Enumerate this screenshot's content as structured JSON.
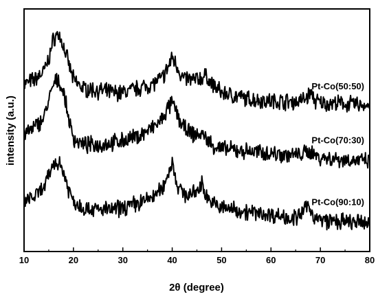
{
  "chart_data": {
    "type": "line",
    "xlabel": "2θ (degree)",
    "ylabel": "intensity (a.u.)",
    "xlim": [
      10,
      80
    ],
    "x_ticks": [
      "10",
      "20",
      "30",
      "40",
      "50",
      "60",
      "70",
      "80"
    ],
    "grid": false,
    "series": [
      {
        "name": "Pt-Co(50:50)",
        "x": [
          10,
          12,
          14,
          15,
          16,
          17,
          18,
          19,
          20,
          22,
          25,
          28,
          30,
          33,
          36,
          38,
          39,
          40,
          41,
          42,
          44,
          46,
          47,
          48,
          50,
          55,
          60,
          65,
          67,
          68,
          69,
          70,
          75,
          80
        ],
        "y": [
          3.4,
          3.5,
          3.7,
          4.0,
          4.5,
          4.6,
          4.3,
          3.9,
          3.5,
          3.3,
          3.25,
          3.2,
          3.2,
          3.3,
          3.4,
          3.55,
          3.75,
          4.05,
          3.85,
          3.55,
          3.5,
          3.55,
          3.6,
          3.4,
          3.2,
          3.05,
          3.0,
          2.98,
          3.05,
          3.2,
          3.0,
          2.95,
          2.93,
          2.9
        ]
      },
      {
        "name": "Pt-Co(70:30)",
        "x": [
          10,
          12,
          14,
          15,
          16,
          17,
          18,
          19,
          20,
          22,
          25,
          28,
          30,
          33,
          36,
          38,
          39,
          40,
          41,
          42,
          44,
          46,
          47,
          48,
          50,
          55,
          60,
          65,
          67,
          68,
          69,
          70,
          75,
          80
        ],
        "y": [
          2.2,
          2.35,
          2.6,
          3.0,
          3.4,
          3.5,
          3.2,
          2.6,
          2.1,
          1.95,
          1.95,
          2.0,
          2.05,
          2.15,
          2.35,
          2.55,
          2.8,
          2.95,
          2.7,
          2.4,
          2.2,
          2.2,
          2.1,
          1.95,
          1.85,
          1.8,
          1.75,
          1.7,
          1.75,
          1.8,
          1.7,
          1.65,
          1.6,
          1.55
        ]
      },
      {
        "name": "Pt-Co(90:10)",
        "x": [
          10,
          12,
          14,
          15,
          16,
          17,
          18,
          19,
          20,
          22,
          25,
          28,
          30,
          33,
          36,
          38,
          39,
          40,
          41,
          42,
          44,
          45,
          46,
          47,
          48,
          50,
          53,
          55,
          60,
          65,
          66,
          67,
          68,
          69,
          70,
          75,
          80
        ],
        "y": [
          0.6,
          0.7,
          0.9,
          1.2,
          1.5,
          1.55,
          1.3,
          0.9,
          0.6,
          0.45,
          0.4,
          0.4,
          0.45,
          0.55,
          0.7,
          0.9,
          1.2,
          1.55,
          1.0,
          0.8,
          0.75,
          0.85,
          1.0,
          0.75,
          0.55,
          0.45,
          0.4,
          0.35,
          0.28,
          0.2,
          0.25,
          0.48,
          0.4,
          0.2,
          0.15,
          0.1,
          0.08
        ]
      }
    ]
  }
}
